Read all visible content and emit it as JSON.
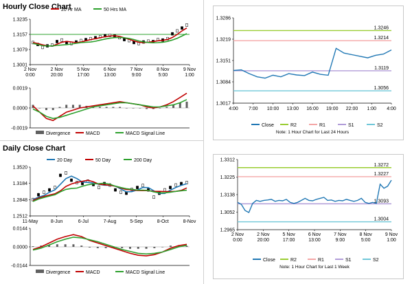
{
  "titles": {
    "hourly": "Hourly Close Chart",
    "daily": "Daily Close Chart"
  },
  "charts": [
    {
      "id": "hourly_price",
      "type": "candlestick",
      "ylim": [
        1.3001,
        1.3235
      ],
      "yticks": [
        "1.3235",
        "1.3157",
        "1.3079",
        "1.3001"
      ],
      "xticks": [
        [
          "2 Nov",
          "0:00"
        ],
        [
          "2 Nov",
          "20:00"
        ],
        [
          "5 Nov",
          "17:00"
        ],
        [
          "6 Nov",
          "13:00"
        ],
        [
          "7 Nov",
          "9:00"
        ],
        [
          "8 Nov",
          "5:00"
        ],
        [
          "9 Nov",
          "1:00"
        ]
      ],
      "legend": [
        {
          "name": "20 Hr MA",
          "color": "#c00000"
        },
        {
          "name": "50 Hrs MA",
          "color": "#2ca02c"
        }
      ],
      "hline": {
        "value": 1.3157,
        "color": "#2ca02c"
      },
      "close_path": [
        1.3115,
        1.3105,
        1.309,
        1.3098,
        1.3102,
        1.312,
        1.3128,
        1.3115,
        1.311,
        1.3118,
        1.3125,
        1.313,
        1.3135,
        1.314,
        1.3145,
        1.315,
        1.3152,
        1.3148,
        1.314,
        1.313,
        1.3125,
        1.3115,
        1.311,
        1.3118,
        1.3122,
        1.312,
        1.313,
        1.3128,
        1.3135,
        1.316,
        1.3175,
        1.319,
        1.3205
      ]
    },
    {
      "id": "hourly_macd",
      "type": "macd",
      "ylim": [
        -0.0019,
        0.0019
      ],
      "yticks": [
        "0.0019",
        "0.0000",
        "-0.0019"
      ],
      "legend": [
        {
          "name": "Divergence",
          "color": "#606060"
        },
        {
          "name": "MACD",
          "color": "#c00000"
        },
        {
          "name": "MACD Signal Line",
          "color": "#2ca02c"
        }
      ],
      "macd": [
        0.0002,
        -0.0004,
        -0.001,
        -0.0012,
        -0.0008,
        -0.0004,
        -0.0002,
        0.0,
        0.0001,
        0.0002,
        0.0003,
        0.0004,
        0.0005,
        0.0006,
        0.0005,
        0.0004,
        0.0003,
        0.0001,
        0.0,
        0.0001,
        0.0003,
        0.0006,
        0.001,
        0.0014
      ],
      "signal": [
        -0.0001,
        -0.0004,
        -0.0008,
        -0.001,
        -0.0009,
        -0.0007,
        -0.0005,
        -0.0003,
        -0.0001,
        0.0001,
        0.0002,
        0.0003,
        0.0004,
        0.0005,
        0.0005,
        0.0004,
        0.0003,
        0.0002,
        0.0001,
        0.0001,
        0.0002,
        0.0003,
        0.0005,
        0.0008
      ]
    },
    {
      "id": "hourly_levels",
      "type": "line",
      "ylim": [
        1.3017,
        1.3286
      ],
      "yticks": [
        "1.3286",
        "1.3219",
        "1.3151",
        "1.3084",
        "1.3017"
      ],
      "xticks": [
        "4:00",
        "7:00",
        "10:00",
        "13:00",
        "16:00",
        "19:00",
        "22:00",
        "1:00",
        "4:00"
      ],
      "levels": [
        {
          "name": "R2",
          "value": 1.3246,
          "label": "1.3246",
          "color": "#9acd32"
        },
        {
          "name": "R1",
          "value": 1.3214,
          "label": "1.3214",
          "color": "#f4a6a6"
        },
        {
          "name": "S1",
          "value": 1.3119,
          "label": "1.3119",
          "color": "#b09cd8"
        },
        {
          "name": "S2",
          "value": 1.3056,
          "label": "1.3056",
          "color": "#6fc7d8"
        }
      ],
      "close": {
        "name": "Close",
        "color": "#1f77b4",
        "values": [
          1.312,
          1.3122,
          1.311,
          1.31,
          1.3096,
          1.3105,
          1.31,
          1.311,
          1.3106,
          1.3104,
          1.3115,
          1.3108,
          1.3105,
          1.319,
          1.3175,
          1.317,
          1.3165,
          1.316,
          1.3168,
          1.3172,
          1.3185
        ]
      },
      "legend": [
        "Close",
        "R2",
        "R1",
        "S1",
        "S2"
      ],
      "note": "Note: 1 Hour Chart for Last 24 Hours"
    },
    {
      "id": "daily_price",
      "type": "candlestick",
      "ylim": [
        1.2512,
        1.352
      ],
      "yticks": [
        "1.3520",
        "1.3184",
        "1.2848",
        "1.2512"
      ],
      "xticks": [
        "11-May",
        "8-Jun",
        "6-Jul",
        "7-Aug",
        "5-Sep",
        "8-Oct",
        "8-Nov"
      ],
      "legend": [
        {
          "name": "20 Day",
          "color": "#1f77b4"
        },
        {
          "name": "50 Day",
          "color": "#c00000"
        },
        {
          "name": "200 Day",
          "color": "#2ca02c"
        }
      ],
      "close_path": [
        1.285,
        1.295,
        1.3,
        1.305,
        1.31,
        1.335,
        1.34,
        1.325,
        1.32,
        1.318,
        1.323,
        1.316,
        1.31,
        1.318,
        1.315,
        1.305,
        1.3,
        1.298,
        1.306,
        1.31,
        1.314,
        1.305,
        1.29,
        1.298,
        1.305,
        1.31,
        1.315,
        1.318,
        1.32
      ]
    },
    {
      "id": "daily_macd",
      "type": "macd",
      "ylim": [
        -0.0144,
        0.0144
      ],
      "yticks": [
        "0.0144",
        "0.0000",
        "-0.0144"
      ],
      "legend": [
        {
          "name": "Divergence",
          "color": "#606060"
        },
        {
          "name": "MACD",
          "color": "#c00000"
        },
        {
          "name": "MACD Signal Line",
          "color": "#2ca02c"
        }
      ],
      "macd": [
        -0.002,
        0.0,
        0.003,
        0.006,
        0.008,
        0.0095,
        0.008,
        0.005,
        0.003,
        0.001,
        -0.001,
        -0.003,
        -0.005,
        -0.0065,
        -0.007,
        -0.006,
        -0.004,
        -0.001,
        0.001,
        0.002
      ],
      "signal": [
        -0.0025,
        -0.001,
        0.0015,
        0.004,
        0.006,
        0.0075,
        0.007,
        0.0055,
        0.004,
        0.002,
        0.0,
        -0.002,
        -0.0035,
        -0.005,
        -0.0055,
        -0.005,
        -0.004,
        -0.002,
        0.0,
        0.0012
      ]
    },
    {
      "id": "weekly_levels",
      "type": "line",
      "ylim": [
        1.2965,
        1.3312
      ],
      "yticks": [
        "1.3312",
        "1.3225",
        "1.3138",
        "1.3052",
        "1.2965"
      ],
      "xticks": [
        [
          "2 Nov",
          "0:00"
        ],
        [
          "2 Nov",
          "20:00"
        ],
        [
          "5 Nov",
          "17:00"
        ],
        [
          "6 Nov",
          "13:00"
        ],
        [
          "7 Nov",
          "9:00"
        ],
        [
          "8 Nov",
          "5:00"
        ],
        [
          "9 Nov",
          "1:00"
        ]
      ],
      "levels": [
        {
          "name": "R2",
          "value": 1.3272,
          "label": "1.3272",
          "color": "#9acd32"
        },
        {
          "name": "R1",
          "value": 1.3227,
          "label": "1.3227",
          "color": "#f4a6a6"
        },
        {
          "name": "S1",
          "value": 1.3093,
          "label": "1.3093",
          "color": "#b09cd8"
        },
        {
          "name": "S2",
          "value": 1.3004,
          "label": "1.3004",
          "color": "#6fc7d8"
        }
      ],
      "close": {
        "name": "Close",
        "color": "#1f77b4",
        "values": [
          1.31,
          1.309,
          1.306,
          1.305,
          1.3095,
          1.311,
          1.3105,
          1.311,
          1.3112,
          1.3115,
          1.3105,
          1.311,
          1.3108,
          1.3115,
          1.31,
          1.3095,
          1.31,
          1.311,
          1.312,
          1.311,
          1.3108,
          1.3115,
          1.312,
          1.3125,
          1.311,
          1.3112,
          1.3105,
          1.311,
          1.3108,
          1.3115,
          1.311,
          1.3105,
          1.311,
          1.312,
          1.31,
          1.3095,
          1.31,
          1.3095,
          1.319,
          1.317,
          1.318,
          1.321
        ]
      },
      "legend": [
        "Close",
        "R2",
        "R1",
        "S1",
        "S2"
      ],
      "note": "Note: 1 Hour Chart for Last 1 Week"
    }
  ]
}
